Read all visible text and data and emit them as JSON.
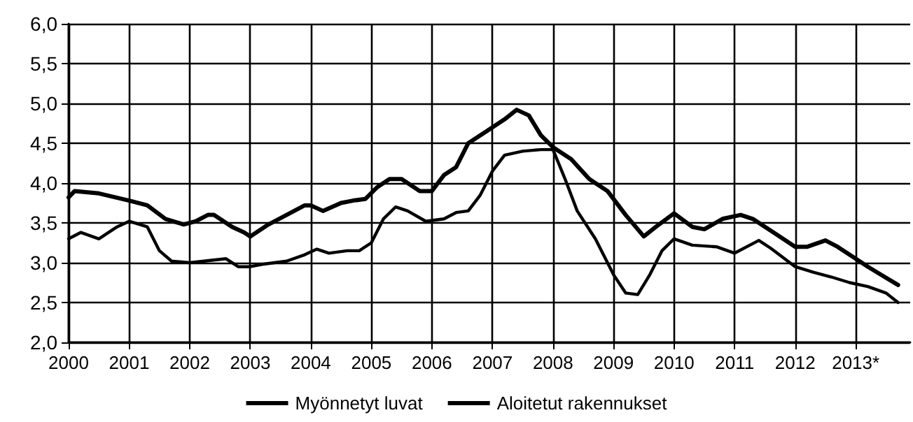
{
  "chart_data": {
    "type": "line",
    "legend": "bottom",
    "grid": true,
    "marker": "none",
    "line_style": "solid",
    "xlim": [
      2000,
      2013.9
    ],
    "xticks": [
      2000,
      2001,
      2002,
      2003,
      2004,
      2005,
      2006,
      2007,
      2008,
      2009,
      2010,
      2011,
      2012,
      {
        "value": 2013,
        "label": "2013*"
      }
    ],
    "ylim": [
      2.0,
      6.0
    ],
    "yticks": [
      {
        "value": 2.0,
        "label": "2,0"
      },
      {
        "value": 2.5,
        "label": "2,5"
      },
      {
        "value": 3.0,
        "label": "3,0"
      },
      {
        "value": 3.5,
        "label": "3,5"
      },
      {
        "value": 4.0,
        "label": "4,0"
      },
      {
        "value": 4.5,
        "label": "4,5"
      },
      {
        "value": 5.0,
        "label": "5,0"
      },
      {
        "value": 5.5,
        "label": "5,5"
      },
      {
        "value": 6.0,
        "label": "6,0"
      }
    ],
    "series": [
      {
        "name": "Myönnetyt luvat",
        "color": "#000000",
        "x": [
          2000,
          2000.1,
          2000.5,
          2001,
          2001.3,
          2001.6,
          2001.9,
          2002.1,
          2002.3,
          2002.4,
          2002.7,
          2002.9,
          2003,
          2003.3,
          2003.6,
          2003.9,
          2004,
          2004.2,
          2004.5,
          2004.7,
          2004.9,
          2005.1,
          2005.3,
          2005.5,
          2005.8,
          2006,
          2006.2,
          2006.4,
          2006.6,
          2006.9,
          2007.2,
          2007.4,
          2007.6,
          2007.8,
          2008,
          2008.3,
          2008.6,
          2008.9,
          2009.2,
          2009.5,
          2009.7,
          2010,
          2010.3,
          2010.5,
          2010.8,
          2011.1,
          2011.3,
          2011.7,
          2012,
          2012.2,
          2012.5,
          2012.7,
          2013,
          2013.2,
          2013.7
        ],
        "values": [
          3.82,
          3.9,
          3.87,
          3.78,
          3.72,
          3.55,
          3.48,
          3.52,
          3.6,
          3.6,
          3.45,
          3.38,
          3.33,
          3.48,
          3.6,
          3.72,
          3.72,
          3.65,
          3.75,
          3.78,
          3.8,
          3.95,
          4.05,
          4.05,
          3.9,
          3.9,
          4.1,
          4.2,
          4.5,
          4.65,
          4.8,
          4.92,
          4.85,
          4.6,
          4.45,
          4.3,
          4.05,
          3.9,
          3.6,
          3.33,
          3.45,
          3.62,
          3.45,
          3.42,
          3.55,
          3.6,
          3.55,
          3.35,
          3.2,
          3.2,
          3.28,
          3.2,
          3.05,
          2.95,
          2.72
        ]
      },
      {
        "name": "Aloitetut rakennukset",
        "color": "#000000",
        "x": [
          2000,
          2000.2,
          2000.5,
          2000.8,
          2001,
          2001.3,
          2001.5,
          2001.7,
          2002,
          2002.6,
          2002.8,
          2003,
          2003.2,
          2003.6,
          2003.9,
          2004.1,
          2004.3,
          2004.6,
          2004.8,
          2005,
          2005.2,
          2005.4,
          2005.6,
          2005.9,
          2006.2,
          2006.4,
          2006.6,
          2006.8,
          2007,
          2007.2,
          2007.5,
          2007.8,
          2008,
          2008.2,
          2008.4,
          2008.7,
          2009,
          2009.2,
          2009.4,
          2009.6,
          2009.8,
          2010,
          2010.3,
          2010.7,
          2011,
          2011.4,
          2011.6,
          2012,
          2012.3,
          2012.6,
          2012.9,
          2013.2,
          2013.5,
          2013.7
        ],
        "values": [
          3.3,
          3.38,
          3.3,
          3.45,
          3.52,
          3.45,
          3.15,
          3.02,
          3.0,
          3.05,
          2.95,
          2.95,
          2.98,
          3.02,
          3.1,
          3.17,
          3.12,
          3.15,
          3.15,
          3.25,
          3.55,
          3.7,
          3.65,
          3.52,
          3.55,
          3.63,
          3.65,
          3.85,
          4.15,
          4.35,
          4.4,
          4.42,
          4.42,
          4.05,
          3.65,
          3.3,
          2.85,
          2.62,
          2.6,
          2.85,
          3.15,
          3.3,
          3.22,
          3.2,
          3.12,
          3.28,
          3.18,
          2.95,
          2.88,
          2.82,
          2.75,
          2.7,
          2.62,
          2.5
        ]
      }
    ]
  }
}
